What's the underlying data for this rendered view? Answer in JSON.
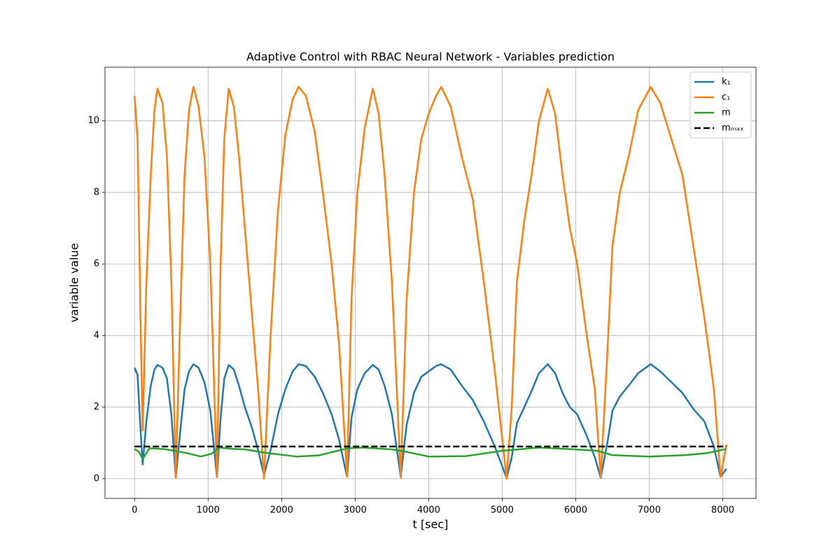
{
  "chart_data": {
    "type": "line",
    "title": "Adaptive Control with RBAC Neural Network - Variables prediction",
    "x_label": "t [sec]",
    "y_label": "variable value",
    "xlim": [
      -402.5,
      8452.5
    ],
    "ylim": [
      -0.55,
      11.5
    ],
    "xticks": [
      0,
      1000,
      2000,
      3000,
      4000,
      5000,
      6000,
      7000,
      8000
    ],
    "yticks": [
      0,
      2,
      4,
      6,
      8,
      10
    ],
    "grid": true,
    "legend": "upper right",
    "series": [
      {
        "name": "k₁",
        "color": "#1f77b4",
        "linestyle": "solid",
        "x": [
          0,
          40,
          80,
          110,
          160,
          220,
          270,
          310,
          380,
          440,
          500,
          560,
          620,
          680,
          740,
          800,
          870,
          950,
          1030,
          1120,
          1170,
          1220,
          1280,
          1350,
          1420,
          1500,
          1600,
          1680,
          1760,
          1850,
          1950,
          2050,
          2150,
          2230,
          2330,
          2450,
          2560,
          2680,
          2780,
          2890,
          2950,
          3030,
          3130,
          3240,
          3320,
          3400,
          3500,
          3620,
          3700,
          3800,
          3900,
          4000,
          4100,
          4170,
          4300,
          4450,
          4600,
          4750,
          4900,
          5060,
          5130,
          5200,
          5300,
          5400,
          5500,
          5620,
          5720,
          5820,
          5920,
          6020,
          6150,
          6260,
          6340,
          6430,
          6500,
          6600,
          6720,
          6850,
          7020,
          7150,
          7300,
          7450,
          7600,
          7750,
          7880,
          7970,
          8050
        ],
        "values": [
          3.1,
          2.9,
          1.4,
          0.4,
          1.6,
          2.6,
          3.05,
          3.18,
          3.1,
          2.8,
          1.8,
          0.03,
          1.3,
          2.5,
          3.0,
          3.2,
          3.1,
          2.7,
          1.9,
          0.05,
          1.7,
          2.8,
          3.18,
          3.05,
          2.6,
          2.0,
          1.4,
          0.8,
          0.1,
          0.8,
          1.8,
          2.5,
          3.0,
          3.2,
          3.15,
          2.85,
          2.4,
          1.8,
          1.1,
          0.05,
          1.7,
          2.5,
          2.95,
          3.18,
          3.05,
          2.6,
          1.8,
          0.05,
          1.5,
          2.4,
          2.85,
          3.0,
          3.15,
          3.2,
          3.05,
          2.6,
          2.2,
          1.6,
          0.9,
          0.02,
          0.6,
          1.55,
          2.0,
          2.45,
          2.95,
          3.2,
          2.95,
          2.4,
          2.0,
          1.8,
          1.2,
          0.6,
          0.02,
          1.0,
          1.9,
          2.3,
          2.6,
          2.95,
          3.2,
          3.0,
          2.7,
          2.4,
          1.95,
          1.6,
          0.9,
          0.05,
          0.28
        ]
      },
      {
        "name": "c₁",
        "color": "#ff7f0e",
        "linestyle": "solid",
        "x": [
          0,
          40,
          80,
          110,
          160,
          220,
          270,
          310,
          380,
          440,
          500,
          560,
          620,
          680,
          740,
          800,
          870,
          950,
          1030,
          1120,
          1170,
          1220,
          1280,
          1350,
          1420,
          1500,
          1600,
          1680,
          1760,
          1850,
          1950,
          2050,
          2150,
          2230,
          2330,
          2450,
          2560,
          2680,
          2780,
          2890,
          2950,
          3030,
          3130,
          3240,
          3320,
          3400,
          3500,
          3620,
          3700,
          3800,
          3900,
          4000,
          4100,
          4170,
          4300,
          4450,
          4600,
          4750,
          4900,
          5060,
          5130,
          5200,
          5300,
          5400,
          5500,
          5620,
          5720,
          5820,
          5920,
          6020,
          6150,
          6260,
          6340,
          6430,
          6500,
          6600,
          6720,
          6850,
          7020,
          7150,
          7300,
          7450,
          7600,
          7750,
          7880,
          7970,
          8050
        ],
        "values": [
          10.7,
          9.5,
          4.5,
          1.35,
          5.5,
          8.5,
          10.3,
          10.9,
          10.5,
          9.0,
          5.5,
          0.02,
          4.5,
          8.5,
          10.3,
          10.95,
          10.4,
          9.0,
          6.0,
          0.05,
          6.0,
          9.5,
          10.9,
          10.4,
          9.0,
          7.0,
          4.5,
          2.5,
          0.0,
          4.0,
          7.5,
          9.6,
          10.6,
          10.95,
          10.7,
          9.7,
          8.0,
          6.0,
          3.8,
          0.05,
          5.0,
          8.0,
          9.8,
          10.9,
          10.2,
          8.5,
          5.5,
          0.02,
          5.0,
          8.0,
          9.5,
          10.2,
          10.7,
          10.95,
          10.4,
          9.0,
          7.8,
          5.5,
          3.0,
          0.0,
          2.0,
          5.5,
          7.2,
          8.5,
          10.0,
          10.9,
          10.2,
          8.5,
          7.0,
          6.0,
          4.0,
          2.5,
          0.02,
          3.5,
          6.5,
          8.0,
          9.0,
          10.3,
          10.95,
          10.5,
          9.5,
          8.5,
          6.5,
          4.5,
          2.5,
          0.05,
          0.95
        ]
      },
      {
        "name": "m",
        "color": "#2ca02c",
        "linestyle": "solid",
        "x": [
          0,
          60,
          110,
          200,
          400,
          700,
          900,
          1050,
          1150,
          1300,
          1500,
          1800,
          2200,
          2500,
          2900,
          3100,
          3500,
          3700,
          4000,
          4500,
          5000,
          5500,
          6000,
          6300,
          6500,
          7000,
          7500,
          7800,
          8050
        ],
        "values": [
          0.83,
          0.75,
          0.55,
          0.85,
          0.83,
          0.72,
          0.62,
          0.7,
          0.87,
          0.84,
          0.82,
          0.72,
          0.62,
          0.65,
          0.85,
          0.87,
          0.82,
          0.75,
          0.62,
          0.63,
          0.78,
          0.87,
          0.82,
          0.78,
          0.66,
          0.62,
          0.66,
          0.72,
          0.83
        ]
      },
      {
        "name": "mₘₐₓ",
        "color": "#000000",
        "linestyle": "dashed",
        "x": [
          0,
          8050
        ],
        "values": [
          0.9,
          0.9
        ]
      }
    ]
  }
}
